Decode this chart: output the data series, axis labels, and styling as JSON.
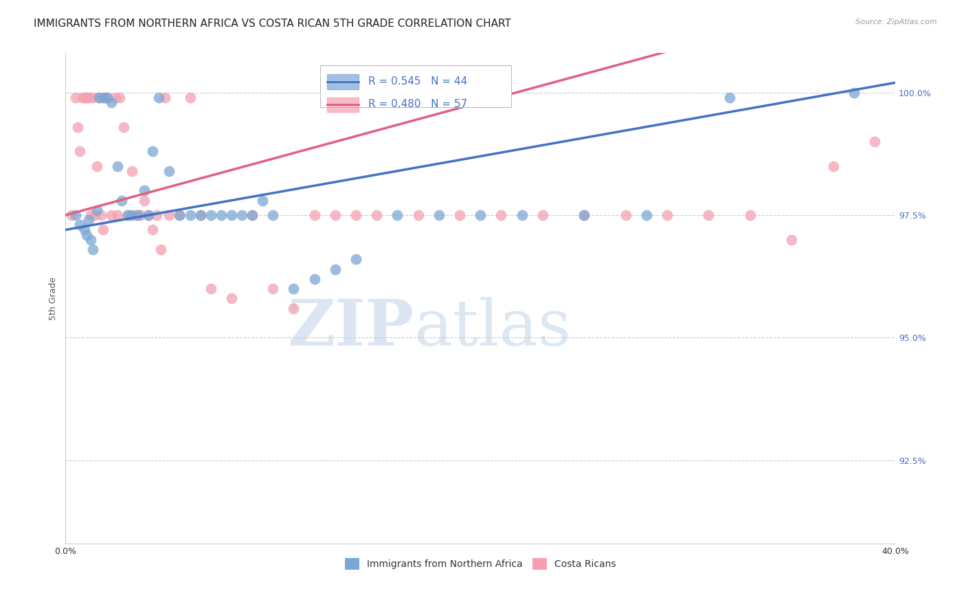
{
  "title": "IMMIGRANTS FROM NORTHERN AFRICA VS COSTA RICAN 5TH GRADE CORRELATION CHART",
  "source": "Source: ZipAtlas.com",
  "ylabel": "5th Grade",
  "y_tick_labels": [
    "100.0%",
    "97.5%",
    "95.0%",
    "92.5%"
  ],
  "y_tick_values": [
    1.0,
    0.975,
    0.95,
    0.925
  ],
  "xlim": [
    0.0,
    0.4
  ],
  "ylim": [
    0.908,
    1.008
  ],
  "legend_blue_r": "R = 0.545",
  "legend_blue_n": "N = 44",
  "legend_pink_r": "R = 0.480",
  "legend_pink_n": "N = 57",
  "legend_label_blue": "Immigrants from Northern Africa",
  "legend_label_pink": "Costa Ricans",
  "blue_color": "#7BA7D4",
  "pink_color": "#F4A0B0",
  "blue_line_color": "#4472C4",
  "pink_line_color": "#E06080",
  "blue_scatter_x": [
    0.005,
    0.007,
    0.009,
    0.01,
    0.011,
    0.012,
    0.013,
    0.015,
    0.016,
    0.018,
    0.02,
    0.022,
    0.025,
    0.027,
    0.03,
    0.032,
    0.035,
    0.038,
    0.04,
    0.042,
    0.045,
    0.05,
    0.055,
    0.06,
    0.065,
    0.07,
    0.075,
    0.08,
    0.085,
    0.09,
    0.095,
    0.1,
    0.11,
    0.12,
    0.13,
    0.14,
    0.16,
    0.18,
    0.2,
    0.22,
    0.25,
    0.28,
    0.32,
    0.38
  ],
  "blue_scatter_y": [
    0.975,
    0.973,
    0.972,
    0.971,
    0.974,
    0.97,
    0.968,
    0.976,
    0.999,
    0.999,
    0.999,
    0.998,
    0.985,
    0.978,
    0.975,
    0.975,
    0.975,
    0.98,
    0.975,
    0.988,
    0.999,
    0.984,
    0.975,
    0.975,
    0.975,
    0.975,
    0.975,
    0.975,
    0.975,
    0.975,
    0.978,
    0.975,
    0.96,
    0.962,
    0.964,
    0.966,
    0.975,
    0.975,
    0.975,
    0.975,
    0.975,
    0.975,
    0.999,
    1.0
  ],
  "pink_scatter_x": [
    0.003,
    0.005,
    0.006,
    0.007,
    0.008,
    0.009,
    0.01,
    0.011,
    0.012,
    0.013,
    0.014,
    0.015,
    0.016,
    0.017,
    0.018,
    0.019,
    0.02,
    0.022,
    0.024,
    0.025,
    0.026,
    0.028,
    0.03,
    0.032,
    0.034,
    0.036,
    0.038,
    0.04,
    0.042,
    0.044,
    0.046,
    0.048,
    0.05,
    0.055,
    0.06,
    0.065,
    0.07,
    0.08,
    0.09,
    0.1,
    0.11,
    0.12,
    0.13,
    0.14,
    0.15,
    0.17,
    0.19,
    0.21,
    0.23,
    0.25,
    0.27,
    0.29,
    0.31,
    0.33,
    0.35,
    0.37,
    0.39
  ],
  "pink_scatter_y": [
    0.975,
    0.999,
    0.993,
    0.988,
    0.999,
    0.999,
    0.999,
    0.999,
    0.975,
    0.999,
    0.975,
    0.985,
    0.999,
    0.975,
    0.972,
    0.999,
    0.999,
    0.975,
    0.999,
    0.975,
    0.999,
    0.993,
    0.975,
    0.984,
    0.975,
    0.975,
    0.978,
    0.975,
    0.972,
    0.975,
    0.968,
    0.999,
    0.975,
    0.975,
    0.999,
    0.975,
    0.96,
    0.958,
    0.975,
    0.96,
    0.956,
    0.975,
    0.975,
    0.975,
    0.975,
    0.975,
    0.975,
    0.975,
    0.975,
    0.975,
    0.975,
    0.975,
    0.975,
    0.975,
    0.97,
    0.985,
    0.99
  ],
  "watermark_zip": "ZIP",
  "watermark_atlas": "atlas",
  "title_fontsize": 11,
  "axis_label_fontsize": 9,
  "tick_fontsize": 9,
  "source_fontsize": 8
}
